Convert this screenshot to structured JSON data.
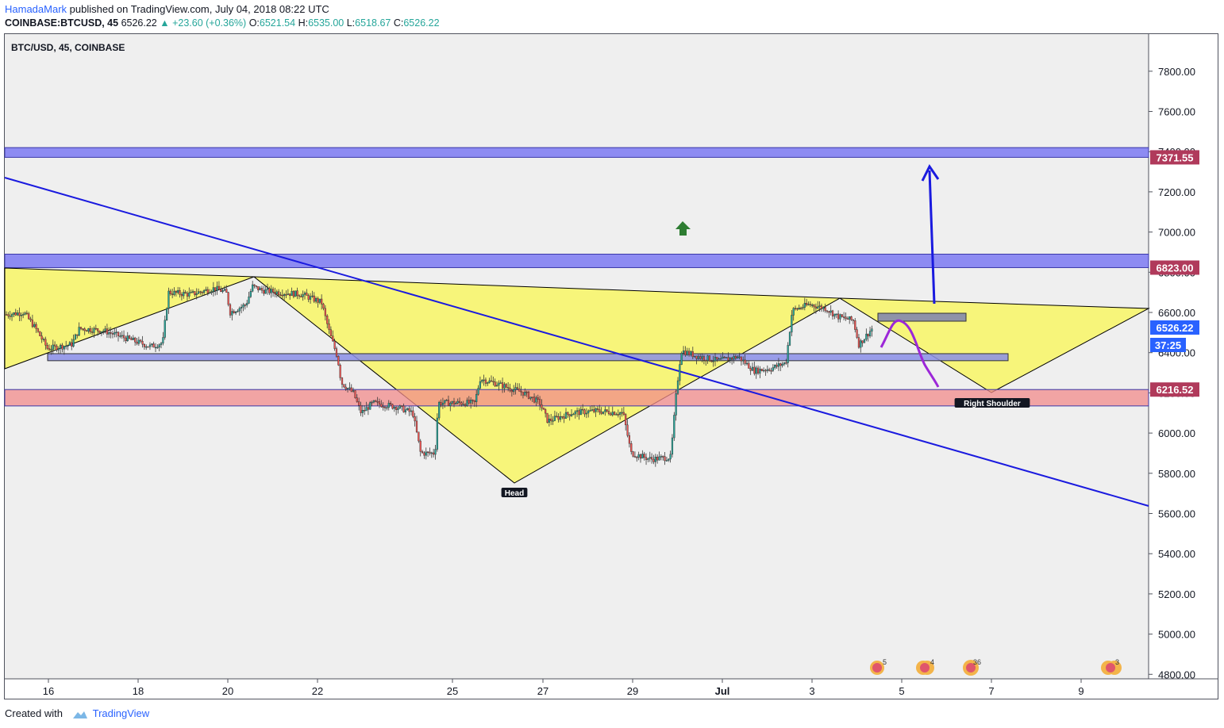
{
  "header": {
    "author": "HamadaMark",
    "published": "published on TradingView.com, July 04, 2018 08:22 UTC",
    "symbol": "COINBASE:BTCUSD, 45",
    "last": "6526.22",
    "change": "▲ +23.60 (+0.36%)",
    "o_label": "O:",
    "o": "6521.54",
    "h_label": "H:",
    "h": "6535.00",
    "l_label": "L:",
    "l": "6518.67",
    "c_label": "C:",
    "c": "6526.22"
  },
  "chart_label": "BTC/USD, 45, COINBASE",
  "footer": {
    "created": "Created with",
    "brand": "TradingView"
  },
  "chart_data": {
    "type": "candlestick",
    "title": "BTC/USD, 45, COINBASE",
    "y_range": [
      4600,
      7800
    ],
    "y_ticks": [
      "7800.00",
      "7600.00",
      "7400.00",
      "7200.00",
      "7000.00",
      "6800.00",
      "6600.00",
      "6400.00",
      "6200.00",
      "6000.00",
      "5800.00",
      "5600.00",
      "5400.00",
      "5200.00",
      "5000.00",
      "4800.00"
    ],
    "x_ticks": [
      "16",
      "18",
      "20",
      "22",
      "25",
      "27",
      "29",
      "Jul",
      "3",
      "5",
      "7",
      "9"
    ],
    "price_labels": [
      {
        "text": "7371.55",
        "value": 7371.55,
        "color": "#b03a5b"
      },
      {
        "text": "6823.00",
        "value": 6823.0,
        "color": "#b03a5b"
      },
      {
        "text": "6526.22",
        "value": 6526.22,
        "color": "#2962ff"
      },
      {
        "text": "37:25",
        "value": 6450,
        "color": "#2962ff"
      },
      {
        "text": "6216.52",
        "value": 6216.52,
        "color": "#b03a5b"
      }
    ],
    "zones": [
      {
        "name": "resistance-upper",
        "from": 7371.55,
        "to": 7420,
        "color": "#7b79f2"
      },
      {
        "name": "resistance-lower",
        "from": 6823,
        "to": 6890,
        "color": "#7b79f2"
      },
      {
        "name": "support",
        "from": 6135,
        "to": 6216.52,
        "color": "#f28b8b"
      },
      {
        "name": "neckline-zone",
        "from": 6360,
        "to": 6395,
        "color": "#8a8ee8"
      }
    ],
    "annotations": [
      {
        "text": "Head",
        "x": "26",
        "y": 5760
      },
      {
        "text": "Right Shoulder",
        "x": "7",
        "y": 6190
      }
    ],
    "current_price": 6526.22,
    "candle_colors": {
      "up": "#26a69a",
      "down": "#ef5350"
    }
  }
}
